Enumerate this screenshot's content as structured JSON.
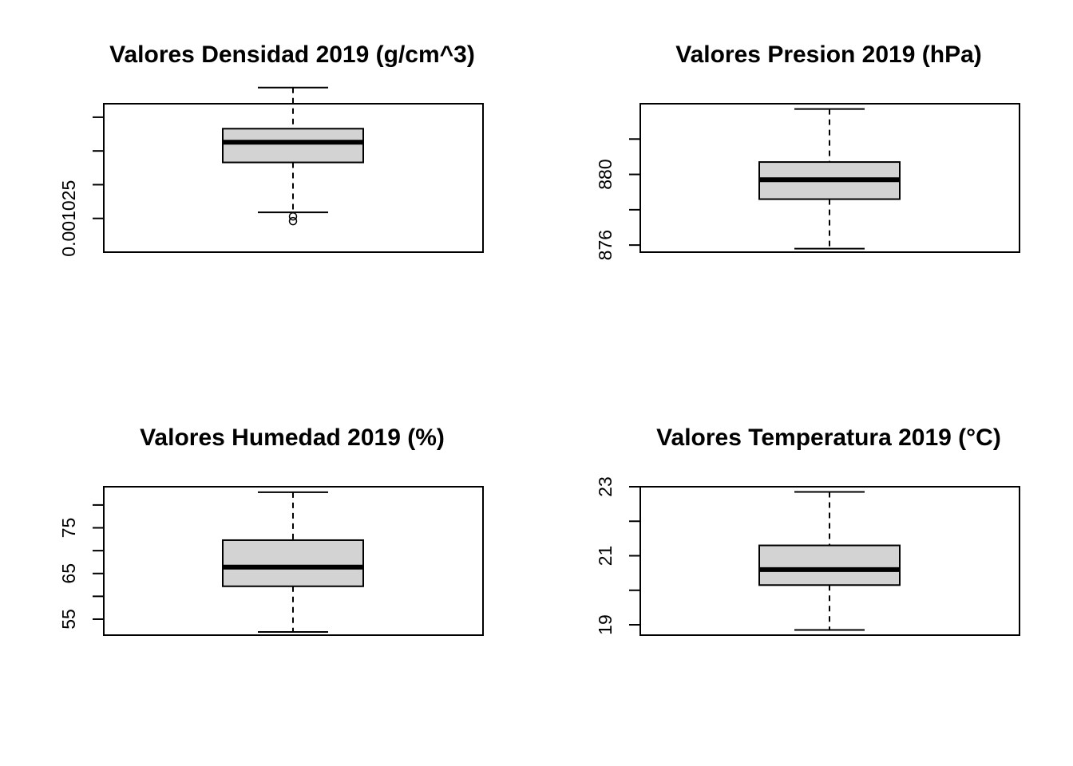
{
  "chart_data": [
    {
      "type": "box",
      "title": "Valores Densidad 2019 (g/cm^3)",
      "ylim": [
        0.0010245,
        0.0010267
      ],
      "ticks": [
        0.001025,
        0.0010255,
        0.001026,
        0.0010265
      ],
      "tick_labels": [
        "0.001025",
        "",
        "",
        ""
      ],
      "box": {
        "min": 0.00102509,
        "q1": 0.00102583,
        "median": 0.00102613,
        "q3": 0.00102633,
        "max": 0.00102694
      },
      "outliers": [
        0.00102496,
        0.00102503
      ]
    },
    {
      "type": "box",
      "title": "Valores Presion 2019 (hPa)",
      "ylim": [
        875.6,
        884.0
      ],
      "ticks": [
        876,
        878,
        880,
        882
      ],
      "tick_labels": [
        "876",
        "",
        "880",
        ""
      ],
      "box": {
        "min": 875.8,
        "q1": 878.6,
        "median": 879.7,
        "q3": 880.7,
        "max": 883.7
      },
      "outliers": []
    },
    {
      "type": "box",
      "title": "Valores Humedad 2019 (%)",
      "ylim": [
        51.5,
        84
      ],
      "ticks": [
        55,
        60,
        65,
        70,
        75,
        80
      ],
      "tick_labels": [
        "55",
        "",
        "65",
        "",
        "75",
        ""
      ],
      "box": {
        "min": 52.2,
        "q1": 62.2,
        "median": 66.4,
        "q3": 72.3,
        "max": 82.8
      },
      "outliers": []
    },
    {
      "type": "box",
      "title": "Valores Temperatura 2019 (°C)",
      "ylim": [
        18.7,
        23.0
      ],
      "ticks": [
        19,
        20,
        21,
        22,
        23
      ],
      "tick_labels": [
        "19",
        "",
        "21",
        "",
        "23"
      ],
      "box": {
        "min": 18.85,
        "q1": 20.15,
        "median": 20.6,
        "q3": 21.3,
        "max": 22.85
      },
      "outliers": []
    }
  ]
}
